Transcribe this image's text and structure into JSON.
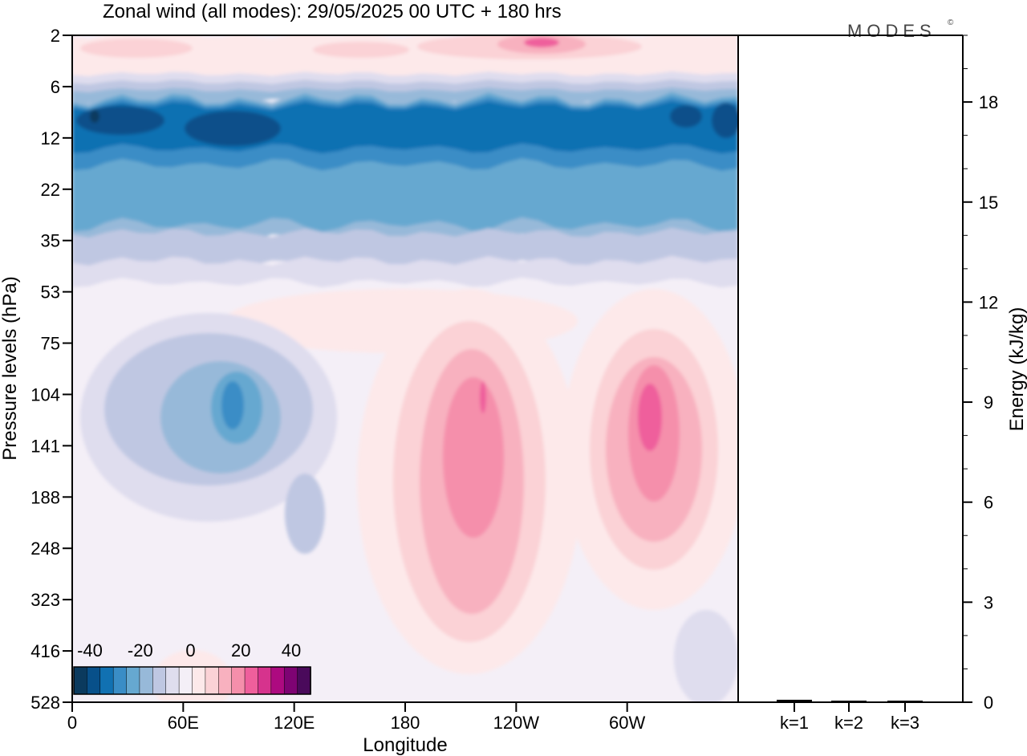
{
  "title": "Zonal wind (all modes):  29/05/2025  00 UTC  + 180 hrs",
  "logo": "MODES",
  "logo_mark": "©",
  "colors": {
    "neg": [
      "#0b3a5e",
      "#08508a",
      "#1171b2",
      "#3a8dc6",
      "#66a8d0",
      "#97b9d9",
      "#bfc7e2",
      "#dfddee"
    ],
    "neutral": "#f4eff7",
    "pos": [
      "#fde9ea",
      "#fbd2d6",
      "#f8b1bf",
      "#f58fab",
      "#ef5f9c",
      "#d6338d",
      "#ad0a80",
      "#7e0373",
      "#4a0a5b"
    ]
  },
  "chart_data": [
    {
      "type": "heatmap",
      "title": "Zonal wind (all modes):  29/05/2025  00 UTC  + 180 hrs",
      "xlabel": "Longitude",
      "ylabel": "Pressure levels (hPa)",
      "x_ticks": [
        "0",
        "60E",
        "120E",
        "180",
        "120W",
        "60W"
      ],
      "y_ticks": [
        "2",
        "6",
        "12",
        "22",
        "35",
        "53",
        "75",
        "104",
        "141",
        "188",
        "248",
        "323",
        "416",
        "528"
      ],
      "colorbar": {
        "labels": [
          "-40",
          "-20",
          "0",
          "20",
          "40"
        ],
        "range": [
          -40,
          40
        ]
      },
      "features": [
        {
          "name": "stratospheric easterly jet",
          "lon": [
            0,
            360
          ],
          "level": 10,
          "value": -28
        },
        {
          "name": "easterly core near 85E",
          "lon": 85,
          "level": 120,
          "value": -15
        },
        {
          "name": "westerly core near 155W",
          "lon": 205,
          "level": 130,
          "value": 18
        },
        {
          "name": "westerly core near 60W",
          "lon": 300,
          "level": 140,
          "value": 16
        },
        {
          "name": "upper westerlies",
          "lon": [
            200,
            300
          ],
          "level": 2,
          "value": 15
        }
      ]
    },
    {
      "type": "bar",
      "categories": [
        "k=1",
        "k=2",
        "k=3"
      ],
      "values": [
        0.05,
        0.02,
        0.01
      ],
      "ylabel": "Energy (kJ/kg)",
      "ylim": [
        0,
        20
      ],
      "y_ticks": [
        "0",
        "3",
        "6",
        "9",
        "12",
        "15",
        "18"
      ]
    }
  ]
}
